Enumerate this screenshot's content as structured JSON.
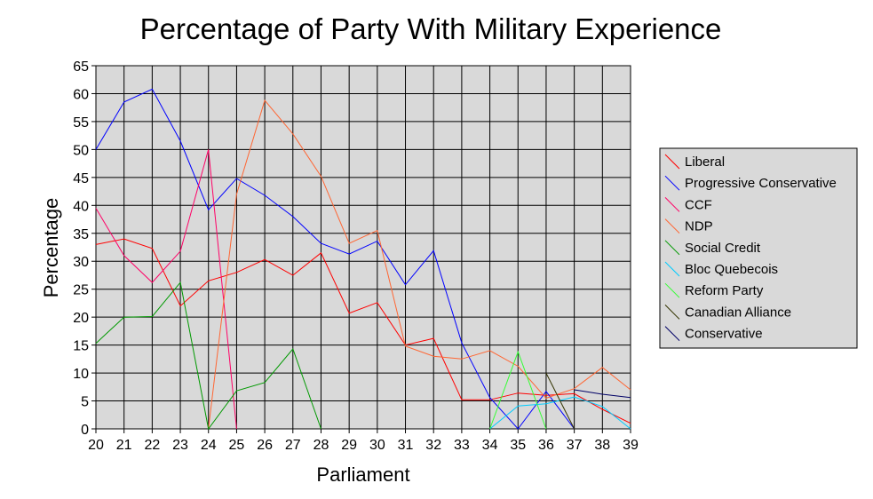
{
  "chart_data": {
    "type": "line",
    "title": "Percentage of Party With Military Experience",
    "xlabel": "Parliament",
    "ylabel": "Percentage",
    "x": [
      "20",
      "21",
      "22",
      "23",
      "24",
      "25",
      "26",
      "27",
      "28",
      "29",
      "30",
      "31",
      "32",
      "33",
      "34",
      "35",
      "36",
      "37",
      "38",
      "39"
    ],
    "ylim": [
      0,
      65
    ],
    "yticks": [
      0,
      5,
      10,
      15,
      20,
      25,
      30,
      35,
      40,
      45,
      50,
      55,
      60,
      65
    ],
    "grid": true,
    "legend_position": "right",
    "series": [
      {
        "name": "Liberal",
        "color": "#ff0000",
        "values": [
          33,
          34,
          32.3,
          22,
          26.5,
          28,
          30.3,
          27.5,
          31.5,
          20.7,
          22.6,
          15,
          16.2,
          5.2,
          5.2,
          6.4,
          6,
          6.3,
          3.5,
          1
        ]
      },
      {
        "name": "Progressive Conservative",
        "color": "#0000ff",
        "values": [
          50,
          58.5,
          60.8,
          51.5,
          39.2,
          44.8,
          41.8,
          38,
          33.2,
          31.3,
          33.6,
          25.8,
          31.9,
          15.4,
          5.6,
          0,
          6.7,
          0,
          null,
          null
        ]
      },
      {
        "name": "CCF",
        "color": "#ff0066",
        "values": [
          39.5,
          31,
          26.2,
          31.8,
          50,
          0,
          null,
          null,
          null,
          null,
          null,
          null,
          null,
          null,
          null,
          null,
          null,
          null,
          null,
          null
        ]
      },
      {
        "name": "NDP",
        "color": "#ff6633",
        "values": [
          null,
          null,
          null,
          null,
          0,
          42,
          58.8,
          52.8,
          45.2,
          33.2,
          35.5,
          14.8,
          13,
          12.5,
          14,
          11.2,
          5.5,
          7.2,
          11,
          7
        ]
      },
      {
        "name": "Social Credit",
        "color": "#009900",
        "values": [
          15.3,
          20,
          20.1,
          26.2,
          0,
          6.8,
          8.3,
          14.3,
          0,
          null,
          null,
          null,
          null,
          null,
          null,
          null,
          null,
          null,
          null,
          null
        ]
      },
      {
        "name": "Bloc Quebecois",
        "color": "#00ccff",
        "values": [
          null,
          null,
          null,
          null,
          null,
          null,
          null,
          null,
          null,
          null,
          null,
          null,
          null,
          null,
          0,
          4.1,
          4.5,
          5.7,
          4,
          0
        ]
      },
      {
        "name": "Reform Party",
        "color": "#33ff33",
        "values": [
          null,
          null,
          null,
          null,
          null,
          null,
          null,
          null,
          null,
          null,
          null,
          null,
          null,
          null,
          0,
          13.8,
          0,
          null,
          null,
          null
        ]
      },
      {
        "name": "Canadian Alliance",
        "color": "#333300",
        "values": [
          null,
          null,
          null,
          null,
          null,
          null,
          null,
          null,
          null,
          null,
          null,
          null,
          null,
          null,
          null,
          null,
          10,
          0,
          null,
          null
        ]
      },
      {
        "name": "Conservative",
        "color": "#000066",
        "values": [
          null,
          null,
          null,
          null,
          null,
          null,
          null,
          null,
          null,
          null,
          null,
          null,
          null,
          null,
          null,
          null,
          null,
          7,
          6.2,
          5.6
        ]
      }
    ]
  }
}
